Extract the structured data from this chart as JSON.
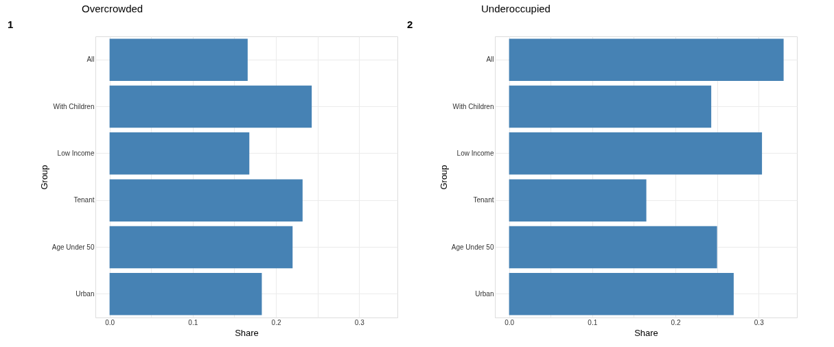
{
  "chart_data": [
    {
      "type": "bar",
      "orientation": "horizontal",
      "title": "Overcrowded",
      "annotations": [
        "1"
      ],
      "xlabel": "Share",
      "ylabel": "Group",
      "categories": [
        "All",
        "With Children",
        "Low Income",
        "Tenant",
        "Age Under 50",
        "Urban"
      ],
      "series": [
        {
          "color": "#4682b4",
          "values": [
            0.166,
            0.243,
            0.168,
            0.232,
            0.22,
            0.183
          ]
        }
      ],
      "xlim": [
        -0.017,
        0.346
      ],
      "xticks": [
        {
          "value": 0,
          "label": "0.0"
        },
        {
          "value": 0.05,
          "label": null
        },
        0.1,
        {
          "value": 0.15,
          "label": null
        },
        0.2,
        {
          "value": 0.25,
          "label": null
        },
        0.3
      ],
      "grid": true
    },
    {
      "type": "bar",
      "orientation": "horizontal",
      "title": "Underoccupied",
      "annotations": [
        "2"
      ],
      "xlabel": "Share",
      "ylabel": "Group",
      "categories": [
        "All",
        "With Children",
        "Low Income",
        "Tenant",
        "Age Under 50",
        "Urban"
      ],
      "series": [
        {
          "color": "#4682b4",
          "values": [
            0.33,
            0.243,
            0.304,
            0.165,
            0.25,
            0.27
          ]
        }
      ],
      "xlim": [
        -0.017,
        0.346
      ],
      "xticks": [
        {
          "value": 0,
          "label": "0.0"
        },
        {
          "value": 0.05,
          "label": null
        },
        0.1,
        {
          "value": 0.15,
          "label": null
        },
        0.2,
        {
          "value": 0.25,
          "label": null
        },
        0.3
      ],
      "grid": true
    }
  ]
}
